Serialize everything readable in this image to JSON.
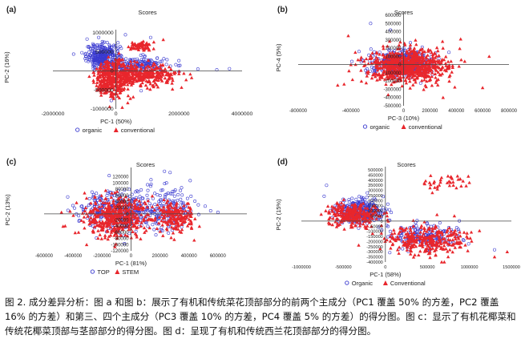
{
  "figure": {
    "caption": "图 2. 成分差异分析：图 a 和图 b：展示了有机和传统菜花顶部部分的前两个主成分（PC1 覆盖 50% 的方差，PC2 覆盖 16% 的方差）和第三、四个主成分（PC3 覆盖 10% 的方差，PC4 覆盖 5% 的方差）的得分图。图 c：显示了有机花椰菜和传统花椰菜顶部与茎部部分的得分图。图 d：呈现了有机和传统西兰花顶部部分的得分图。"
  },
  "colors": {
    "blue": "#3a3ad0",
    "red": "#e8262c",
    "axis": "#444444"
  },
  "chart_data": [
    {
      "panel": "(a)",
      "type": "scatter",
      "title": "Scores",
      "xlabel": "PC-1 (50%)",
      "ylabel": "PC-2 (16%)",
      "xlim": [
        -2000000,
        4000000
      ],
      "ylim": [
        -1000000,
        1000000
      ],
      "xticks": [
        -2000000,
        0,
        2000000,
        4000000
      ],
      "xtick_labels": [
        "-2000000",
        "0",
        "2000000",
        "4000000"
      ],
      "yticks": [
        -1000000,
        -500000,
        0,
        500000,
        1000000
      ],
      "ytick_labels": [
        "-1000000",
        "-500000",
        "0",
        "500000",
        "1000000"
      ],
      "legend": "bottom",
      "series": [
        {
          "name": "organic",
          "marker": "circle",
          "color": "#3a3ad0",
          "count": 500,
          "clusters": [
            [
              -400000,
              380000,
              450000,
              280000,
              1
            ],
            [
              700000,
              150000,
              800000,
              180000,
              0.5
            ]
          ],
          "points": [
            [
              2600000,
              50000
            ],
            [
              3200000,
              30000
            ],
            [
              3600000,
              60000
            ],
            [
              1400000,
              50000
            ],
            [
              2000000,
              -20000
            ],
            [
              1100000,
              880000
            ],
            [
              300000,
              950000
            ],
            [
              -150000,
              -780000
            ],
            [
              800000,
              -520000
            ]
          ]
        },
        {
          "name": "conventional",
          "marker": "triangle",
          "color": "#e8262c",
          "count": 760,
          "clusters": [
            [
              -100000,
              -200000,
              500000,
              380000,
              1
            ],
            [
              900000,
              -120000,
              900000,
              230000,
              0.7
            ],
            [
              800000,
              650000,
              300000,
              100000,
              0.15
            ]
          ],
          "points": [
            [
              2400000,
              -180000
            ],
            [
              1800000,
              -250000
            ],
            [
              -200000,
              -940000
            ],
            [
              200000,
              -960000
            ],
            [
              1500000,
              820000
            ],
            [
              1200000,
              760000
            ]
          ]
        }
      ]
    },
    {
      "panel": "(b)",
      "type": "scatter",
      "title": "Scores",
      "xlabel": "PC-3 (10%)",
      "ylabel": "PC-4 (5%)",
      "xlim": [
        -800000,
        800000
      ],
      "ylim": [
        -500000,
        600000
      ],
      "xticks": [
        -800000,
        -400000,
        0,
        200000,
        400000,
        600000,
        800000
      ],
      "xtick_labels": [
        "-800000",
        "-400000",
        "0",
        "200000",
        "400000",
        "600000",
        "800000"
      ],
      "yticks": [
        -500000,
        -400000,
        -300000,
        -200000,
        -100000,
        0,
        100000,
        200000,
        300000,
        400000,
        500000,
        600000
      ],
      "ytick_labels": [
        "-500000",
        "-400000",
        "-300000",
        "-200000",
        "-100000",
        "0",
        "100000",
        "200000",
        "300000",
        "400000",
        "500000",
        "600000"
      ],
      "legend": "bottom",
      "series": [
        {
          "name": "organic",
          "marker": "circle",
          "color": "#3a3ad0",
          "count": 420,
          "clusters": [
            [
              -20000,
              30000,
              200000,
              120000,
              1
            ]
          ],
          "points": [
            [
              -250000,
              500000
            ],
            [
              -100000,
              420000
            ]
          ]
        },
        {
          "name": "conventional",
          "marker": "triangle",
          "color": "#e8262c",
          "count": 760,
          "clusters": [
            [
              20000,
              -20000,
              260000,
              170000,
              1
            ]
          ],
          "points": [
            [
              -420000,
              350000
            ],
            [
              650000,
              100000
            ],
            [
              600000,
              -280000
            ],
            [
              -500000,
              -250000
            ],
            [
              300000,
              -400000
            ]
          ]
        }
      ]
    },
    {
      "panel": "(c)",
      "type": "scatter",
      "title": "Scores",
      "xlabel": "PC-1 (81%)",
      "ylabel": "PC-2 (13%)",
      "xlim": [
        -600000,
        800000
      ],
      "ylim": [
        -120000,
        140000
      ],
      "xticks": [
        -600000,
        -400000,
        -200000,
        0,
        200000,
        400000,
        600000
      ],
      "xtick_labels": [
        "-600000",
        "-400000",
        "-200000",
        "0",
        "200000",
        "400000",
        "600000"
      ],
      "yticks": [
        -120000,
        -100000,
        -80000,
        -60000,
        -40000,
        -20000,
        0,
        20000,
        40000,
        60000,
        80000,
        100000,
        120000
      ],
      "ytick_labels": [
        "-120000",
        "-100000",
        "-80000",
        "-60000",
        "-40000",
        "-20000",
        "0",
        "20000",
        "40000",
        "60000",
        "80000",
        "100000",
        "120000"
      ],
      "legend": "bottom",
      "series": [
        {
          "name": "TOP",
          "marker": "circle",
          "color": "#3a3ad0",
          "count": 500,
          "clusters": [
            [
              -80000,
              10000,
              220000,
              55000,
              1
            ],
            [
              250000,
              20000,
              150000,
              60000,
              0.5
            ]
          ],
          "points": [
            [
              550000,
              10000
            ],
            [
              600000,
              5000
            ]
          ]
        },
        {
          "name": "STEM",
          "marker": "triangle",
          "color": "#e8262c",
          "count": 640,
          "clusters": [
            [
              -100000,
              -10000,
              180000,
              55000,
              1
            ],
            [
              300000,
              -10000,
              120000,
              40000,
              0.4
            ]
          ],
          "points": [
            [
              -480000,
              5000
            ],
            [
              -420000,
              8000
            ]
          ]
        }
      ]
    },
    {
      "panel": "(d)",
      "type": "scatter",
      "title": "Scores",
      "xlabel": "PC-1 (58%)",
      "ylabel": "PC-2 (15%)",
      "xlim": [
        -1000000,
        1500000
      ],
      "ylim": [
        -400000,
        500000
      ],
      "xticks": [
        -1000000,
        -500000,
        0,
        500000,
        1000000,
        1500000
      ],
      "xtick_labels": [
        "-1000000",
        "-500000",
        "0",
        "500000",
        "1000000",
        "1500000"
      ],
      "yticks": [
        -400000,
        -350000,
        -300000,
        -250000,
        -200000,
        -150000,
        -100000,
        -50000,
        0,
        50000,
        100000,
        150000,
        200000,
        250000,
        300000,
        350000,
        400000,
        450000,
        500000
      ],
      "ytick_labels": [
        "-400000",
        "-350000",
        "-300000",
        "-250000",
        "-200000",
        "-150000",
        "-100000",
        "-50000",
        "0",
        "50000",
        "100000",
        "150000",
        "200000",
        "250000",
        "300000",
        "350000",
        "400000",
        "450000",
        "500000"
      ],
      "legend": "bottom",
      "series": [
        {
          "name": "Organic",
          "marker": "circle",
          "color": "#3a3ad0",
          "count": 520,
          "clusters": [
            [
              -300000,
              100000,
              250000,
              110000,
              1
            ],
            [
              450000,
              -150000,
              350000,
              110000,
              0.6
            ]
          ],
          "points": [
            [
              1300000,
              -280000
            ],
            [
              -700000,
              350000
            ]
          ]
        },
        {
          "name": "Conventional",
          "marker": "triangle",
          "color": "#e8262c",
          "count": 620,
          "clusters": [
            [
              -400000,
              60000,
              250000,
              90000,
              0.9
            ],
            [
              500000,
              -180000,
              400000,
              120000,
              1
            ],
            [
              700000,
              380000,
              200000,
              80000,
              0.12
            ]
          ],
          "points": [
            [
              1450000,
              -300000
            ],
            [
              1300000,
              -350000
            ]
          ]
        }
      ]
    }
  ]
}
